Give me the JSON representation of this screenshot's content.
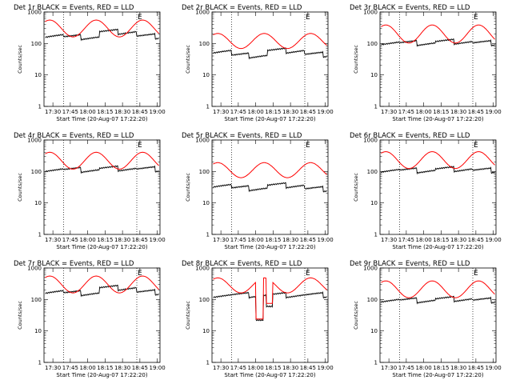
{
  "chart_data": {
    "type": "line",
    "layout": "grid-3x3",
    "ylabel": "Counts/sec",
    "xlabel": "Start Time (20-Aug-07 17:22:20)",
    "x_tick_labels": [
      "17:30",
      "17:45",
      "18:00",
      "18:15",
      "18:30",
      "18:45",
      "19:00"
    ],
    "x_tick_minutes": [
      7.67,
      22.67,
      37.67,
      52.67,
      67.67,
      82.67,
      97.67
    ],
    "x_range_minutes": [
      0,
      100
    ],
    "y_scale": "log",
    "y_tick_labels": [
      "1",
      "10",
      "100",
      "1000"
    ],
    "y_tick_values": [
      1,
      10,
      100,
      1000
    ],
    "y_range": [
      1,
      1000
    ],
    "event_marker": "E",
    "colors": {
      "events": "#000000",
      "lld": "#ff0000"
    },
    "panels": [
      {
        "title": "Det 1r BLACK = Events, RED = LLD",
        "dotted_minutes": [
          17,
          80
        ],
        "events": {
          "base": 190,
          "amp": 0.15,
          "type": "step",
          "steps": [
            [
              0,
              17,
              1.0
            ],
            [
              17,
              48,
              0.85
            ],
            [
              48,
              80,
              1.25
            ],
            [
              80,
              100,
              0.9
            ]
          ]
        },
        "lld": {
          "base": 300,
          "amp": 0.28
        }
      },
      {
        "title": "Det 2r BLACK = Events, RED = LLD",
        "dotted_minutes": [
          17,
          80
        ],
        "events": {
          "base": 60,
          "amp": 0.18,
          "type": "step",
          "steps": [
            [
              0,
              17,
              1.0
            ],
            [
              17,
              48,
              0.7
            ],
            [
              48,
              80,
              1.0
            ],
            [
              80,
              100,
              0.75
            ]
          ]
        },
        "lld": {
          "base": 120,
          "amp": 0.25
        }
      },
      {
        "title": "Det 3r BLACK = Events, RED = LLD",
        "dotted_minutes": [
          17,
          80
        ],
        "events": {
          "base": 110,
          "amp": 0.05,
          "type": "step",
          "steps": [
            [
              0,
              17,
              1.0
            ],
            [
              17,
              48,
              0.95
            ],
            [
              48,
              80,
              1.05
            ],
            [
              80,
              100,
              0.95
            ]
          ]
        },
        "lld": {
          "base": 200,
          "amp": 0.3
        }
      },
      {
        "title": "Det 4r BLACK = Events, RED = LLD",
        "dotted_minutes": [
          17,
          80
        ],
        "events": {
          "base": 120,
          "amp": 0.05,
          "type": "step",
          "steps": [
            [
              0,
              17,
              1.0
            ],
            [
              17,
              48,
              0.95
            ],
            [
              48,
              80,
              1.05
            ],
            [
              80,
              100,
              1.0
            ]
          ]
        },
        "lld": {
          "base": 220,
          "amp": 0.28
        }
      },
      {
        "title": "Det 5r BLACK = Events, RED = LLD",
        "dotted_minutes": [
          17,
          80
        ],
        "events": {
          "base": 35,
          "amp": 0.1,
          "type": "step",
          "steps": [
            [
              0,
              17,
              1.1
            ],
            [
              17,
              48,
              0.85
            ],
            [
              48,
              80,
              1.05
            ],
            [
              80,
              100,
              0.8
            ]
          ]
        },
        "lld": {
          "base": 110,
          "amp": 0.25
        }
      },
      {
        "title": "Det 6r BLACK = Events, RED = LLD",
        "dotted_minutes": [
          17,
          80
        ],
        "events": {
          "base": 115,
          "amp": 0.05,
          "type": "step",
          "steps": [
            [
              0,
              17,
              1.0
            ],
            [
              17,
              48,
              0.95
            ],
            [
              48,
              80,
              1.05
            ],
            [
              80,
              100,
              0.95
            ]
          ]
        },
        "lld": {
          "base": 230,
          "amp": 0.28
        }
      },
      {
        "title": "Det 7r BLACK = Events, RED = LLD",
        "dotted_minutes": [
          17,
          80
        ],
        "events": {
          "base": 190,
          "amp": 0.15,
          "type": "step",
          "steps": [
            [
              0,
              17,
              1.0
            ],
            [
              17,
              48,
              0.85
            ],
            [
              48,
              80,
              1.25
            ],
            [
              80,
              100,
              0.9
            ]
          ]
        },
        "lld": {
          "base": 300,
          "amp": 0.28
        }
      },
      {
        "title": "Det 8r BLACK = Events, RED = LLD",
        "dotted_minutes": [
          17,
          80
        ],
        "events": {
          "base": 140,
          "amp": 0.1,
          "type": "dropout",
          "drops": [
            [
              38,
              44,
              22
            ],
            [
              47,
              52,
              60
            ]
          ]
        },
        "lld": {
          "base": 280,
          "amp": 0.25,
          "drops": [
            [
              38,
              44,
              24
            ],
            [
              47,
              52,
              75
            ]
          ]
        }
      },
      {
        "title": "Det 9r BLACK = Events, RED = LLD",
        "dotted_minutes": [
          17,
          80
        ],
        "events": {
          "base": 100,
          "amp": 0.05,
          "type": "step",
          "steps": [
            [
              0,
              17,
              1.0
            ],
            [
              17,
              48,
              0.95
            ],
            [
              48,
              80,
              1.05
            ],
            [
              80,
              100,
              0.95
            ]
          ]
        },
        "lld": {
          "base": 210,
          "amp": 0.28
        }
      }
    ]
  }
}
